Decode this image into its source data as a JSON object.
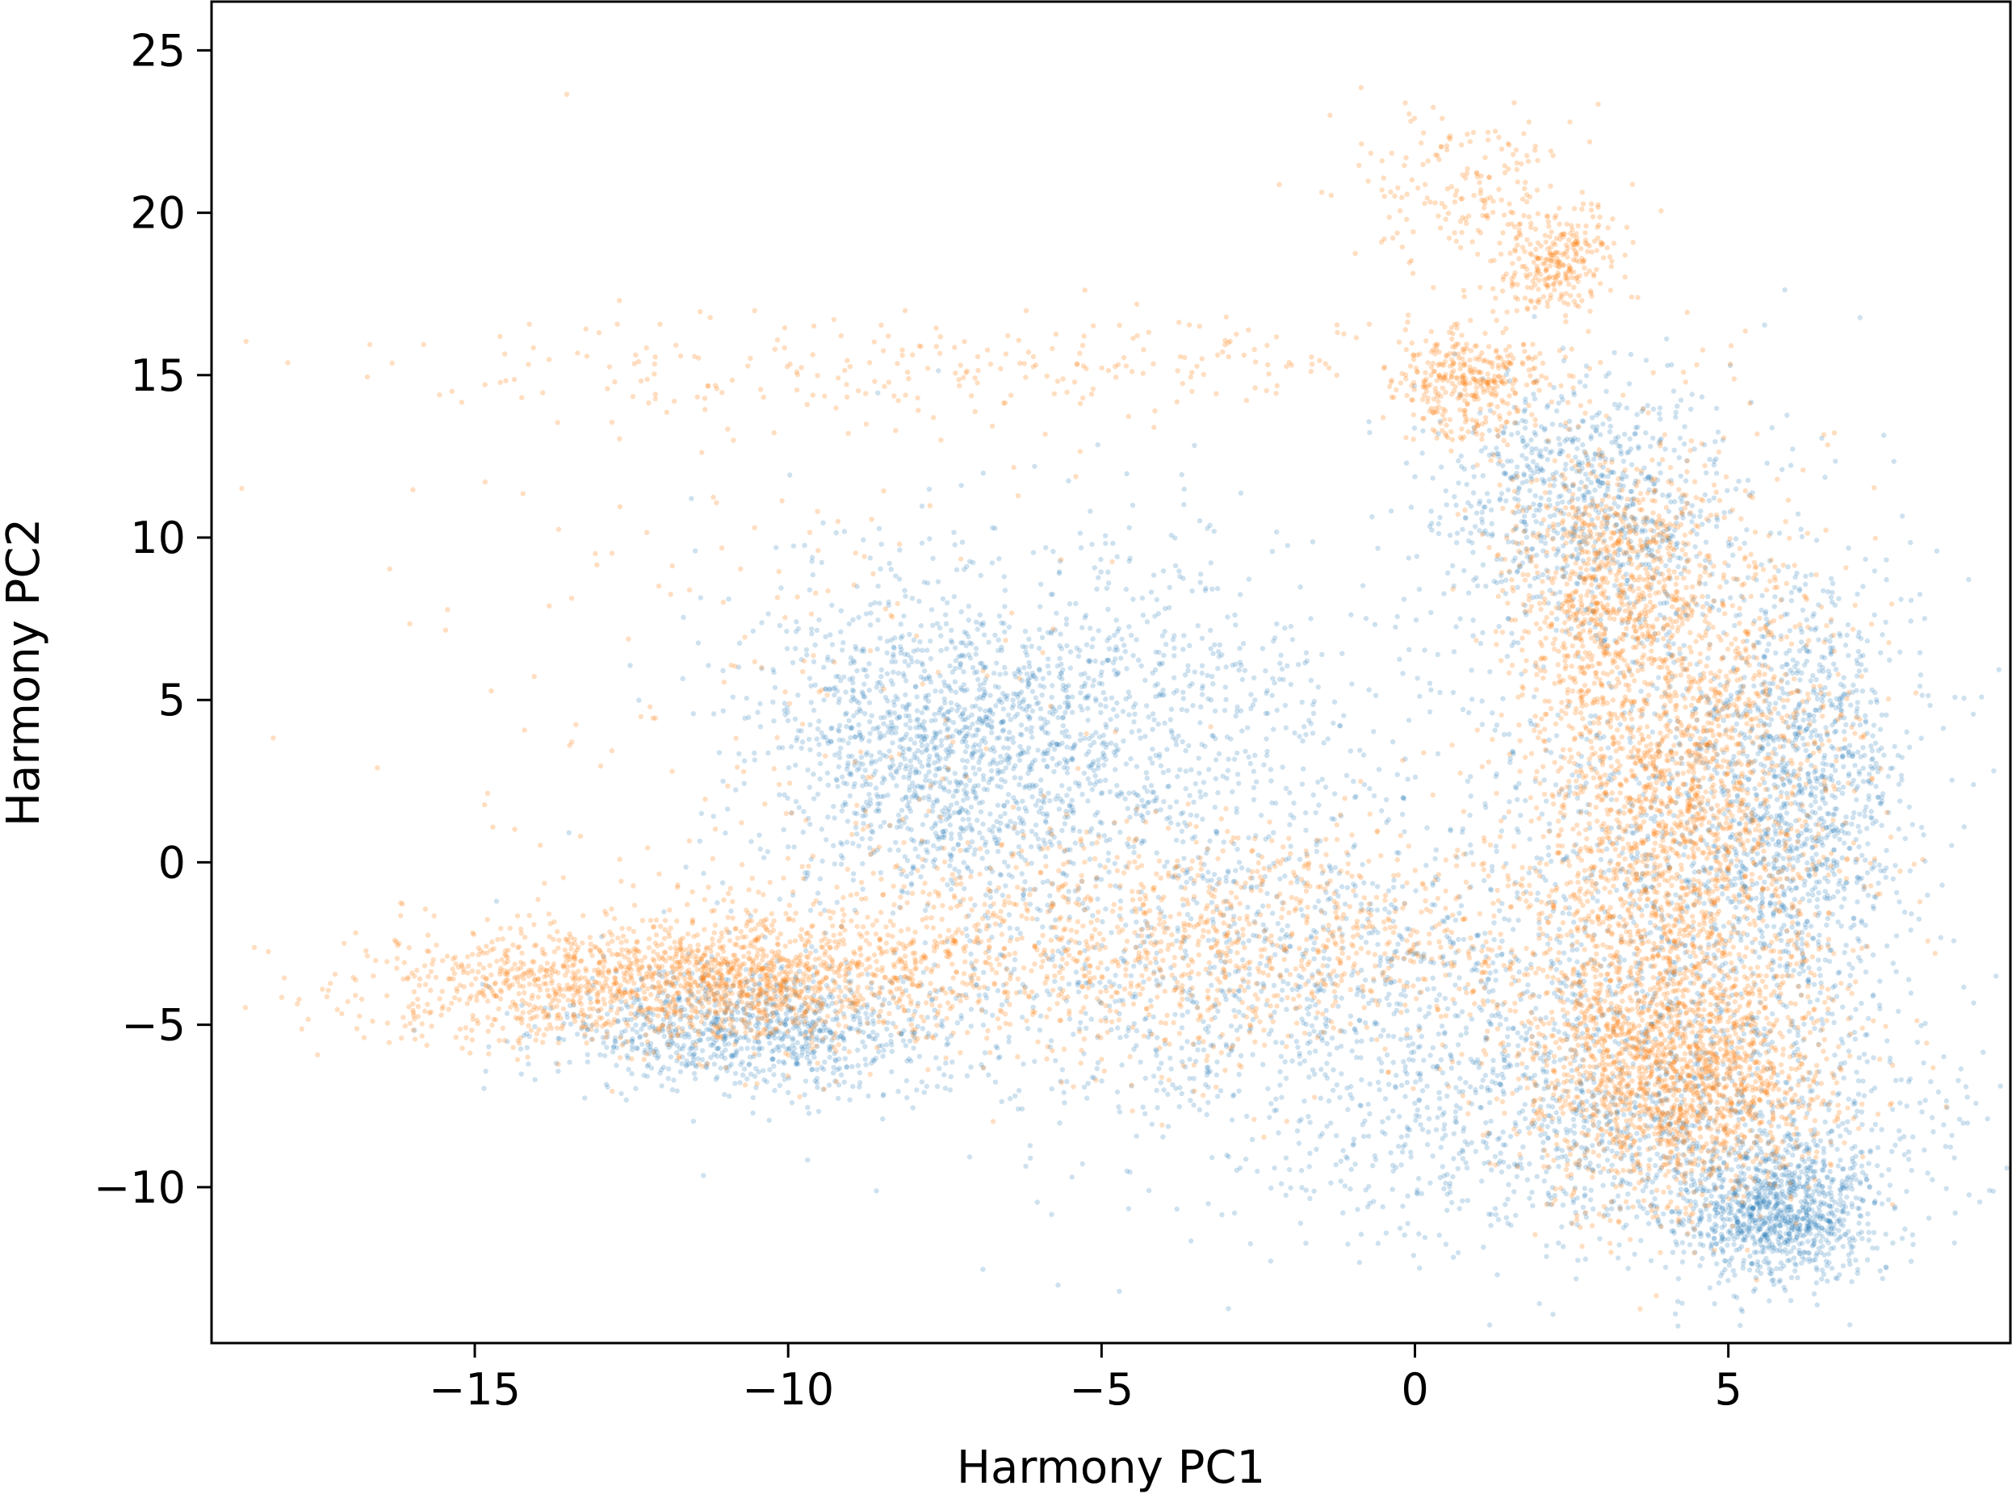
{
  "chart_data": {
    "type": "scatter",
    "title": "",
    "xlabel": "Harmony PC1",
    "ylabel": "Harmony PC2",
    "xlim": [
      -19.2,
      9.5
    ],
    "ylim": [
      -14.8,
      26.5
    ],
    "xticks": [
      -15,
      -10,
      -5,
      0,
      5
    ],
    "yticks": [
      -10,
      -5,
      0,
      5,
      10,
      15,
      20,
      25
    ],
    "xtick_labels": [
      "−15",
      "−10",
      "−5",
      "0",
      "5"
    ],
    "ytick_labels": [
      "−10",
      "−5",
      "0",
      "5",
      "10",
      "15",
      "20",
      "25"
    ],
    "grid": false,
    "legend": "none",
    "marker": "small dots, low alpha",
    "series": [
      {
        "color": "#1f77b4",
        "clusters": [
          {
            "cx": -7.5,
            "cy": 3.5,
            "sx": 1.6,
            "sy": 2.4,
            "weight": 0.14
          },
          {
            "cx": -4.5,
            "cy": 4.0,
            "sx": 2.6,
            "sy": 3.2,
            "weight": 0.1
          },
          {
            "cx": -10.5,
            "cy": -5.2,
            "sx": 1.6,
            "sy": 0.9,
            "weight": 0.1
          },
          {
            "cx": 5.8,
            "cy": -10.8,
            "sx": 0.8,
            "sy": 1.0,
            "weight": 0.1
          },
          {
            "cx": 6.2,
            "cy": 2.0,
            "sx": 0.8,
            "sy": 3.2,
            "weight": 0.1
          },
          {
            "cx": 2.8,
            "cy": 11.0,
            "sx": 1.2,
            "sy": 2.0,
            "weight": 0.09
          },
          {
            "cx": 3.5,
            "cy": -8.5,
            "sx": 2.8,
            "sy": 2.0,
            "weight": 0.12
          },
          {
            "cx": -1.5,
            "cy": -4.0,
            "sx": 3.5,
            "sy": 2.6,
            "weight": 0.13
          },
          {
            "cx": 4.5,
            "cy": 0.5,
            "sx": 1.8,
            "sy": 5.0,
            "weight": 0.12
          }
        ]
      },
      {
        "color": "#ff7f0e",
        "clusters": [
          {
            "cx": -11.0,
            "cy": -3.6,
            "sx": 1.8,
            "sy": 0.9,
            "weight": 0.13
          },
          {
            "cx": -4.0,
            "cy": -2.5,
            "sx": 3.5,
            "sy": 1.8,
            "weight": 0.16
          },
          {
            "cx": 4.2,
            "cy": 2.0,
            "sx": 1.3,
            "sy": 4.5,
            "weight": 0.27
          },
          {
            "cx": 4.2,
            "cy": -6.5,
            "sx": 1.2,
            "sy": 2.0,
            "weight": 0.18
          },
          {
            "cx": 3.0,
            "cy": 9.0,
            "sx": 0.8,
            "sy": 2.0,
            "weight": 0.07
          },
          {
            "cx": 0.9,
            "cy": 14.8,
            "sx": 0.6,
            "sy": 0.9,
            "weight": 0.04
          },
          {
            "cx": 2.3,
            "cy": 18.6,
            "sx": 0.5,
            "sy": 0.8,
            "weight": 0.03
          },
          {
            "cx": 0.9,
            "cy": 20.8,
            "sx": 0.9,
            "sy": 1.3,
            "weight": 0.02
          },
          {
            "cx": -6.5,
            "cy": 15.3,
            "sx": 5.0,
            "sy": 0.8,
            "weight": 0.03
          },
          {
            "cx": -10.0,
            "cy": 6.0,
            "sx": 2.8,
            "sy": 4.5,
            "weight": 0.02
          },
          {
            "cx": -14.0,
            "cy": -4.0,
            "sx": 1.8,
            "sy": 1.0,
            "weight": 0.05
          }
        ]
      }
    ]
  }
}
